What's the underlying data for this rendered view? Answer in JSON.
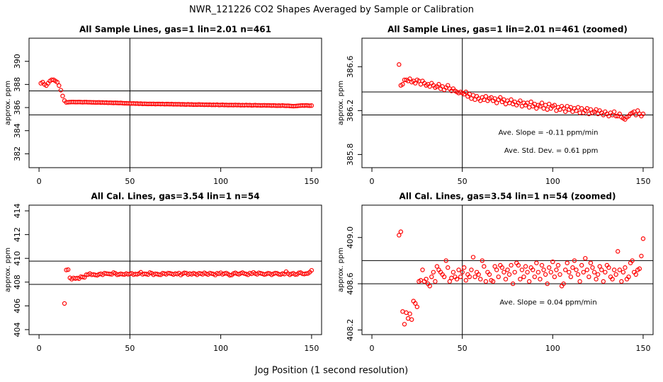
{
  "title": "NWR_121226  CO2 Shapes Averaged by Sample or Calibration",
  "xlabel": "Jog Position (1 second resolution)",
  "chart_data": [
    {
      "type": "scatter",
      "title": "All Sample Lines, gas=1 lin=2.01 n=461",
      "ylabel": "approx. ppm",
      "color": "#ff0000",
      "xlim": [
        -5.5,
        155.5
      ],
      "ylim": [
        380.8,
        392.0
      ],
      "xticks": [
        0,
        50,
        100,
        150
      ],
      "yticks": [
        382,
        384,
        386,
        388,
        390
      ],
      "hlines": [
        387.44,
        385.37
      ],
      "vline": 50,
      "annotations": [],
      "x": [
        1,
        2,
        3,
        4,
        5,
        6,
        7,
        8,
        9,
        10,
        11,
        12,
        13,
        14,
        15,
        16,
        17,
        18,
        19,
        20,
        21,
        22,
        23,
        24,
        25,
        26,
        27,
        28,
        29,
        30,
        31,
        32,
        33,
        34,
        35,
        36,
        37,
        38,
        39,
        40,
        41,
        42,
        43,
        44,
        45,
        46,
        47,
        48,
        49,
        50,
        51,
        52,
        53,
        54,
        55,
        56,
        57,
        58,
        59,
        60,
        61,
        62,
        63,
        64,
        65,
        66,
        67,
        68,
        69,
        70,
        71,
        72,
        73,
        74,
        75,
        76,
        77,
        78,
        79,
        80,
        81,
        82,
        83,
        84,
        85,
        86,
        87,
        88,
        89,
        90,
        91,
        92,
        93,
        94,
        95,
        96,
        97,
        98,
        99,
        100,
        101,
        102,
        103,
        104,
        105,
        106,
        107,
        108,
        109,
        110,
        111,
        112,
        113,
        114,
        115,
        116,
        117,
        118,
        119,
        120,
        121,
        122,
        123,
        124,
        125,
        126,
        127,
        128,
        129,
        130,
        131,
        132,
        133,
        134,
        135,
        136,
        137,
        138,
        139,
        140,
        141,
        142,
        143,
        144,
        145,
        146,
        147,
        148,
        149,
        150
      ],
      "values": [
        388.1,
        388.2,
        388.0,
        387.9,
        388.1,
        388.3,
        388.4,
        388.4,
        388.3,
        388.2,
        387.9,
        387.5,
        387.0,
        386.6,
        386.45,
        386.46,
        386.47,
        386.48,
        386.48,
        386.47,
        386.47,
        386.48,
        386.47,
        386.46,
        386.47,
        386.47,
        386.46,
        386.46,
        386.45,
        386.45,
        386.44,
        386.44,
        386.45,
        386.43,
        386.44,
        386.42,
        386.43,
        386.41,
        386.42,
        386.41,
        386.4,
        386.41,
        386.4,
        386.39,
        386.4,
        386.38,
        386.37,
        386.37,
        386.36,
        386.36,
        386.35,
        386.36,
        386.34,
        386.35,
        386.33,
        386.34,
        386.32,
        386.33,
        386.32,
        386.31,
        386.32,
        386.31,
        386.32,
        386.3,
        386.31,
        386.31,
        386.3,
        386.31,
        386.29,
        386.3,
        386.3,
        386.29,
        386.3,
        386.28,
        386.29,
        386.28,
        386.29,
        386.27,
        386.28,
        386.27,
        386.26,
        386.28,
        386.26,
        386.27,
        386.25,
        386.26,
        386.25,
        386.27,
        386.25,
        386.26,
        386.24,
        386.25,
        386.24,
        386.25,
        386.23,
        386.24,
        386.23,
        386.25,
        386.22,
        386.23,
        386.24,
        386.22,
        386.23,
        386.21,
        386.22,
        386.22,
        386.21,
        386.23,
        386.21,
        386.22,
        386.2,
        386.21,
        386.2,
        386.22,
        386.2,
        386.21,
        386.19,
        386.2,
        386.21,
        386.19,
        386.2,
        386.18,
        386.19,
        386.2,
        386.18,
        386.19,
        386.18,
        386.17,
        386.18,
        386.17,
        386.16,
        386.17,
        386.16,
        386.18,
        386.16,
        386.15,
        386.16,
        386.14,
        386.13,
        386.12,
        386.13,
        386.14,
        386.16,
        386.17,
        386.18,
        386.17,
        386.19,
        386.17,
        386.16,
        386.17
      ]
    },
    {
      "type": "scatter",
      "title": "All Sample Lines, gas=1 lin=2.01 n=461 (zoomed)",
      "ylabel": "approx. ppm",
      "color": "#ff0000",
      "xlim": [
        -5.5,
        155.5
      ],
      "ylim": [
        385.68,
        386.86
      ],
      "xticks": [
        0,
        50,
        100,
        150
      ],
      "yticks": [
        385.8,
        386.2,
        386.6
      ],
      "hlines": [
        386.37,
        386.16
      ],
      "vline": 50,
      "annotations": [
        "Ave. Slope =  -0.11  ppm/min",
        "Ave. Std. Dev. =  0.61  ppm"
      ],
      "x": [
        15,
        16,
        17,
        18,
        19,
        20,
        21,
        22,
        23,
        24,
        25,
        26,
        27,
        28,
        29,
        30,
        31,
        32,
        33,
        34,
        35,
        36,
        37,
        38,
        39,
        40,
        41,
        42,
        43,
        44,
        45,
        46,
        47,
        48,
        49,
        50,
        51,
        52,
        53,
        54,
        55,
        56,
        57,
        58,
        59,
        60,
        61,
        62,
        63,
        64,
        65,
        66,
        67,
        68,
        69,
        70,
        71,
        72,
        73,
        74,
        75,
        76,
        77,
        78,
        79,
        80,
        81,
        82,
        83,
        84,
        85,
        86,
        87,
        88,
        89,
        90,
        91,
        92,
        93,
        94,
        95,
        96,
        97,
        98,
        99,
        100,
        101,
        102,
        103,
        104,
        105,
        106,
        107,
        108,
        109,
        110,
        111,
        112,
        113,
        114,
        115,
        116,
        117,
        118,
        119,
        120,
        121,
        122,
        123,
        124,
        125,
        126,
        127,
        128,
        129,
        130,
        131,
        132,
        133,
        134,
        135,
        136,
        137,
        138,
        139,
        140,
        141,
        142,
        143,
        144,
        145,
        146,
        147,
        148,
        149,
        150
      ],
      "values": [
        386.62,
        386.43,
        386.44,
        386.48,
        386.48,
        386.47,
        386.49,
        386.46,
        386.47,
        386.45,
        386.48,
        386.47,
        386.44,
        386.47,
        386.45,
        386.43,
        386.44,
        386.42,
        386.45,
        386.43,
        386.41,
        386.42,
        386.44,
        386.4,
        386.42,
        386.39,
        386.41,
        386.43,
        386.4,
        386.38,
        386.4,
        386.38,
        386.37,
        386.36,
        386.37,
        386.36,
        386.35,
        386.37,
        386.33,
        386.35,
        386.31,
        386.34,
        386.3,
        386.33,
        386.31,
        386.29,
        386.32,
        386.3,
        386.33,
        386.29,
        386.31,
        386.32,
        386.29,
        386.31,
        386.27,
        386.3,
        386.32,
        386.28,
        386.3,
        386.26,
        386.29,
        386.27,
        386.3,
        386.26,
        386.28,
        386.25,
        386.27,
        386.29,
        386.24,
        386.27,
        386.25,
        386.27,
        386.23,
        386.28,
        386.24,
        386.26,
        386.22,
        386.25,
        386.24,
        386.27,
        386.22,
        386.25,
        386.21,
        386.26,
        386.22,
        386.24,
        386.25,
        386.2,
        386.23,
        386.21,
        386.24,
        386.22,
        386.19,
        386.24,
        386.21,
        386.23,
        386.19,
        386.22,
        386.2,
        386.23,
        386.18,
        386.22,
        386.18,
        386.2,
        386.22,
        386.17,
        386.21,
        386.18,
        386.19,
        386.21,
        386.17,
        386.2,
        386.18,
        386.16,
        386.19,
        386.17,
        386.15,
        386.18,
        386.16,
        386.19,
        386.15,
        386.15,
        386.17,
        386.14,
        386.13,
        386.12,
        386.14,
        386.15,
        386.17,
        386.18,
        386.19,
        386.16,
        386.2,
        386.17,
        386.15,
        386.17
      ]
    },
    {
      "type": "scatter",
      "title": "All Cal. Lines, gas=3.54 lin=1 n=54",
      "ylabel": "approx. ppm",
      "color": "#ff0000",
      "xlim": [
        -5.5,
        155.5
      ],
      "ylim": [
        403.58,
        414.48
      ],
      "xticks": [
        0,
        50,
        100,
        150
      ],
      "yticks": [
        404,
        406,
        408,
        410,
        412,
        414
      ],
      "hlines": [
        409.77,
        407.81
      ],
      "vline": 50,
      "annotations": [],
      "x": [
        14,
        15,
        16,
        17,
        18,
        19,
        20,
        21,
        22,
        23,
        24,
        25,
        26,
        27,
        28,
        29,
        30,
        31,
        32,
        33,
        34,
        35,
        36,
        37,
        38,
        39,
        40,
        41,
        42,
        43,
        44,
        45,
        46,
        47,
        48,
        49,
        50,
        51,
        52,
        53,
        54,
        55,
        56,
        57,
        58,
        59,
        60,
        61,
        62,
        63,
        64,
        65,
        66,
        67,
        68,
        69,
        70,
        71,
        72,
        73,
        74,
        75,
        76,
        77,
        78,
        79,
        80,
        81,
        82,
        83,
        84,
        85,
        86,
        87,
        88,
        89,
        90,
        91,
        92,
        93,
        94,
        95,
        96,
        97,
        98,
        99,
        100,
        101,
        102,
        103,
        104,
        105,
        106,
        107,
        108,
        109,
        110,
        111,
        112,
        113,
        114,
        115,
        116,
        117,
        118,
        119,
        120,
        121,
        122,
        123,
        124,
        125,
        126,
        127,
        128,
        129,
        130,
        131,
        132,
        133,
        134,
        135,
        136,
        137,
        138,
        139,
        140,
        141,
        142,
        143,
        144,
        145,
        146,
        147,
        148,
        149,
        150
      ],
      "values": [
        406.2,
        409.02,
        409.05,
        408.36,
        408.25,
        408.35,
        408.3,
        408.34,
        408.29,
        408.45,
        408.43,
        408.4,
        408.62,
        408.63,
        408.72,
        408.62,
        408.64,
        408.6,
        408.58,
        408.66,
        408.7,
        408.62,
        408.75,
        408.72,
        408.7,
        408.68,
        408.66,
        408.8,
        408.74,
        408.62,
        408.65,
        408.7,
        408.66,
        408.64,
        408.72,
        408.66,
        408.7,
        408.74,
        408.63,
        408.68,
        408.66,
        408.72,
        408.83,
        408.66,
        408.7,
        408.68,
        408.64,
        408.8,
        408.75,
        408.62,
        408.7,
        408.68,
        408.63,
        408.62,
        408.75,
        408.72,
        408.66,
        408.76,
        408.74,
        408.7,
        408.64,
        408.72,
        408.68,
        408.76,
        408.6,
        408.7,
        408.78,
        408.76,
        408.64,
        408.72,
        408.66,
        408.75,
        408.7,
        408.62,
        408.74,
        408.72,
        408.66,
        408.78,
        408.7,
        408.64,
        408.76,
        408.72,
        408.68,
        408.6,
        408.74,
        408.7,
        408.79,
        408.66,
        408.72,
        408.76,
        408.68,
        408.58,
        408.6,
        408.72,
        408.78,
        408.7,
        408.66,
        408.74,
        408.8,
        408.72,
        408.68,
        408.62,
        408.76,
        408.7,
        408.82,
        408.72,
        408.66,
        408.78,
        408.74,
        408.7,
        408.64,
        408.68,
        408.75,
        408.72,
        408.62,
        408.7,
        408.76,
        408.74,
        408.66,
        408.64,
        408.72,
        408.68,
        408.88,
        408.72,
        408.62,
        408.7,
        408.74,
        408.64,
        408.66,
        408.78,
        408.8,
        408.7,
        408.68,
        408.72,
        408.73,
        408.84,
        408.99
      ]
    },
    {
      "type": "scatter",
      "title": "All Cal. Lines, gas=3.54 lin=1 n=54 (zoomed)",
      "ylabel": "approx. ppm",
      "color": "#ff0000",
      "xlim": [
        -5.5,
        155.5
      ],
      "ylim": [
        408.16,
        409.28
      ],
      "xticks": [
        0,
        50,
        100,
        150
      ],
      "yticks": [
        408.2,
        408.6,
        {
          "value": 409,
          "label": "409.0"
        }
      ],
      "hlines": [
        408.8,
        408.6
      ],
      "vline": 50,
      "annotations": [
        "Ave. Slope =  0.04  ppm/min"
      ],
      "x": [
        15,
        16,
        17,
        18,
        19,
        20,
        21,
        22,
        23,
        24,
        25,
        26,
        27,
        28,
        29,
        30,
        31,
        32,
        33,
        34,
        35,
        36,
        37,
        38,
        39,
        40,
        41,
        42,
        43,
        44,
        45,
        46,
        47,
        48,
        49,
        50,
        51,
        52,
        53,
        54,
        55,
        56,
        57,
        58,
        59,
        60,
        61,
        62,
        63,
        64,
        65,
        66,
        67,
        68,
        69,
        70,
        71,
        72,
        73,
        74,
        75,
        76,
        77,
        78,
        79,
        80,
        81,
        82,
        83,
        84,
        85,
        86,
        87,
        88,
        89,
        90,
        91,
        92,
        93,
        94,
        95,
        96,
        97,
        98,
        99,
        100,
        101,
        102,
        103,
        104,
        105,
        106,
        107,
        108,
        109,
        110,
        111,
        112,
        113,
        114,
        115,
        116,
        117,
        118,
        119,
        120,
        121,
        122,
        123,
        124,
        125,
        126,
        127,
        128,
        129,
        130,
        131,
        132,
        133,
        134,
        135,
        136,
        137,
        138,
        139,
        140,
        141,
        142,
        143,
        144,
        145,
        146,
        147,
        148,
        149,
        150
      ],
      "values": [
        409.02,
        409.05,
        408.36,
        408.25,
        408.35,
        408.3,
        408.34,
        408.29,
        408.45,
        408.43,
        408.4,
        408.62,
        408.63,
        408.72,
        408.62,
        408.64,
        408.6,
        408.58,
        408.66,
        408.7,
        408.62,
        408.75,
        408.72,
        408.7,
        408.68,
        408.66,
        408.8,
        408.74,
        408.62,
        408.65,
        408.7,
        408.66,
        408.64,
        408.72,
        408.66,
        408.7,
        408.74,
        408.63,
        408.68,
        408.66,
        408.72,
        408.83,
        408.66,
        408.7,
        408.68,
        408.64,
        408.8,
        408.75,
        408.62,
        408.7,
        408.68,
        408.63,
        408.62,
        408.75,
        408.72,
        408.66,
        408.76,
        408.74,
        408.7,
        408.64,
        408.72,
        408.68,
        408.76,
        408.6,
        408.7,
        408.78,
        408.76,
        408.64,
        408.72,
        408.66,
        408.75,
        408.7,
        408.62,
        408.74,
        408.72,
        408.66,
        408.78,
        408.7,
        408.64,
        408.76,
        408.72,
        408.68,
        408.6,
        408.74,
        408.7,
        408.79,
        408.66,
        408.72,
        408.76,
        408.68,
        408.58,
        408.6,
        408.72,
        408.78,
        408.7,
        408.66,
        408.74,
        408.8,
        408.72,
        408.68,
        408.62,
        408.76,
        408.7,
        408.82,
        408.72,
        408.66,
        408.78,
        408.74,
        408.7,
        408.64,
        408.68,
        408.75,
        408.72,
        408.62,
        408.7,
        408.76,
        408.74,
        408.66,
        408.64,
        408.72,
        408.68,
        408.88,
        408.72,
        408.62,
        408.7,
        408.74,
        408.64,
        408.66,
        408.78,
        408.8,
        408.7,
        408.68,
        408.72,
        408.73,
        408.84,
        408.99
      ]
    }
  ]
}
